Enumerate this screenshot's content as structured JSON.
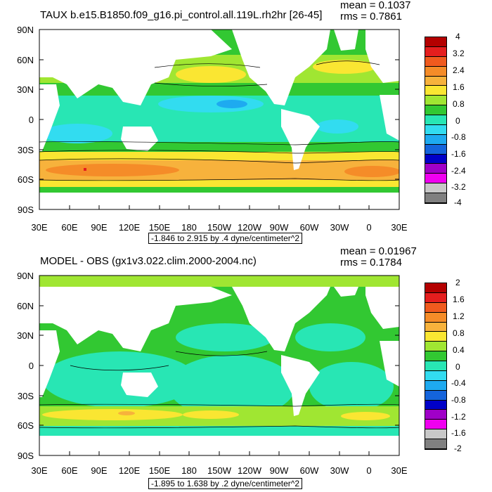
{
  "panels": [
    {
      "title": "TAUX b.e15.B1850.f09_g16.pi_control.all.119L.rh2hr [26-45]",
      "mean": "mean = 0.1037",
      "rms": "rms = 0.7861",
      "range": "-1.846 to 2.915 by .4 dyne/centimeter^2",
      "lat_labels": [
        "90N",
        "60N",
        "30N",
        "0",
        "30S",
        "60S",
        "90S"
      ],
      "lon_labels": [
        "30E",
        "60E",
        "90E",
        "120E",
        "150E",
        "180",
        "150W",
        "120W",
        "90W",
        "60W",
        "30W",
        "0",
        "30E"
      ],
      "colorbar": {
        "labels": [
          "4",
          "3.2",
          "2.4",
          "1.6",
          "0.8",
          "0",
          "-0.8",
          "-1.6",
          "-2.4",
          "-3.2",
          "-4"
        ],
        "colors": [
          "#b40000",
          "#e51e1e",
          "#f05a1e",
          "#f58c28",
          "#f7b23c",
          "#fae632",
          "#a0e632",
          "#32c832",
          "#28e6b4",
          "#32dcf0",
          "#1eaaf0",
          "#1464dc",
          "#0000c8",
          "#a000c8",
          "#f000f0",
          "#c8c8c8",
          "#808080"
        ]
      }
    },
    {
      "title": "MODEL - OBS (gx1v3.022.clim.2000-2004.nc)",
      "mean": "mean = 0.01967",
      "rms": "rms = 0.1784",
      "range": "-1.895 to 1.638 by .2 dyne/centimeter^2",
      "lat_labels": [
        "90N",
        "60N",
        "30N",
        "0",
        "30S",
        "60S",
        "90S"
      ],
      "lon_labels": [
        "30E",
        "60E",
        "90E",
        "120E",
        "150E",
        "180",
        "150W",
        "120W",
        "90W",
        "60W",
        "30W",
        "0",
        "30E"
      ],
      "colorbar": {
        "labels": [
          "2",
          "1.6",
          "1.2",
          "0.8",
          "0.4",
          "0",
          "-0.4",
          "-0.8",
          "-1.2",
          "-1.6",
          "-2"
        ],
        "colors": [
          "#b40000",
          "#e51e1e",
          "#f05a1e",
          "#f58c28",
          "#f7b23c",
          "#fae632",
          "#a0e632",
          "#32c832",
          "#28e6b4",
          "#32dcf0",
          "#1eaaf0",
          "#1464dc",
          "#0000c8",
          "#a000c8",
          "#f000f0",
          "#c8c8c8",
          "#808080"
        ]
      }
    }
  ]
}
